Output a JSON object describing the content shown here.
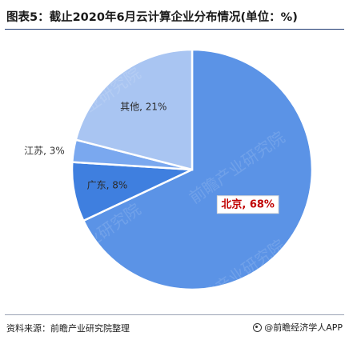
{
  "title": "图表5：截止2020年6月云计算企业分布情况(单位：%)",
  "chart_data": {
    "type": "pie",
    "categories": [
      "北京",
      "广东",
      "江苏",
      "其他"
    ],
    "values": [
      68,
      8,
      3,
      21
    ],
    "labels": [
      "北京, 68%",
      "广东, 8%",
      "江苏, 3%",
      "其他, 21%"
    ],
    "colors": [
      "#5b93e6",
      "#3f7fdf",
      "#7aa8ef",
      "#a9c5f2"
    ],
    "highlight_label_color": "#c00000",
    "watermark": "前瞻产业研究院"
  },
  "footer": {
    "source": "资料来源：前瞻产业研究院整理",
    "brand": "@前瞻经济学人APP"
  }
}
